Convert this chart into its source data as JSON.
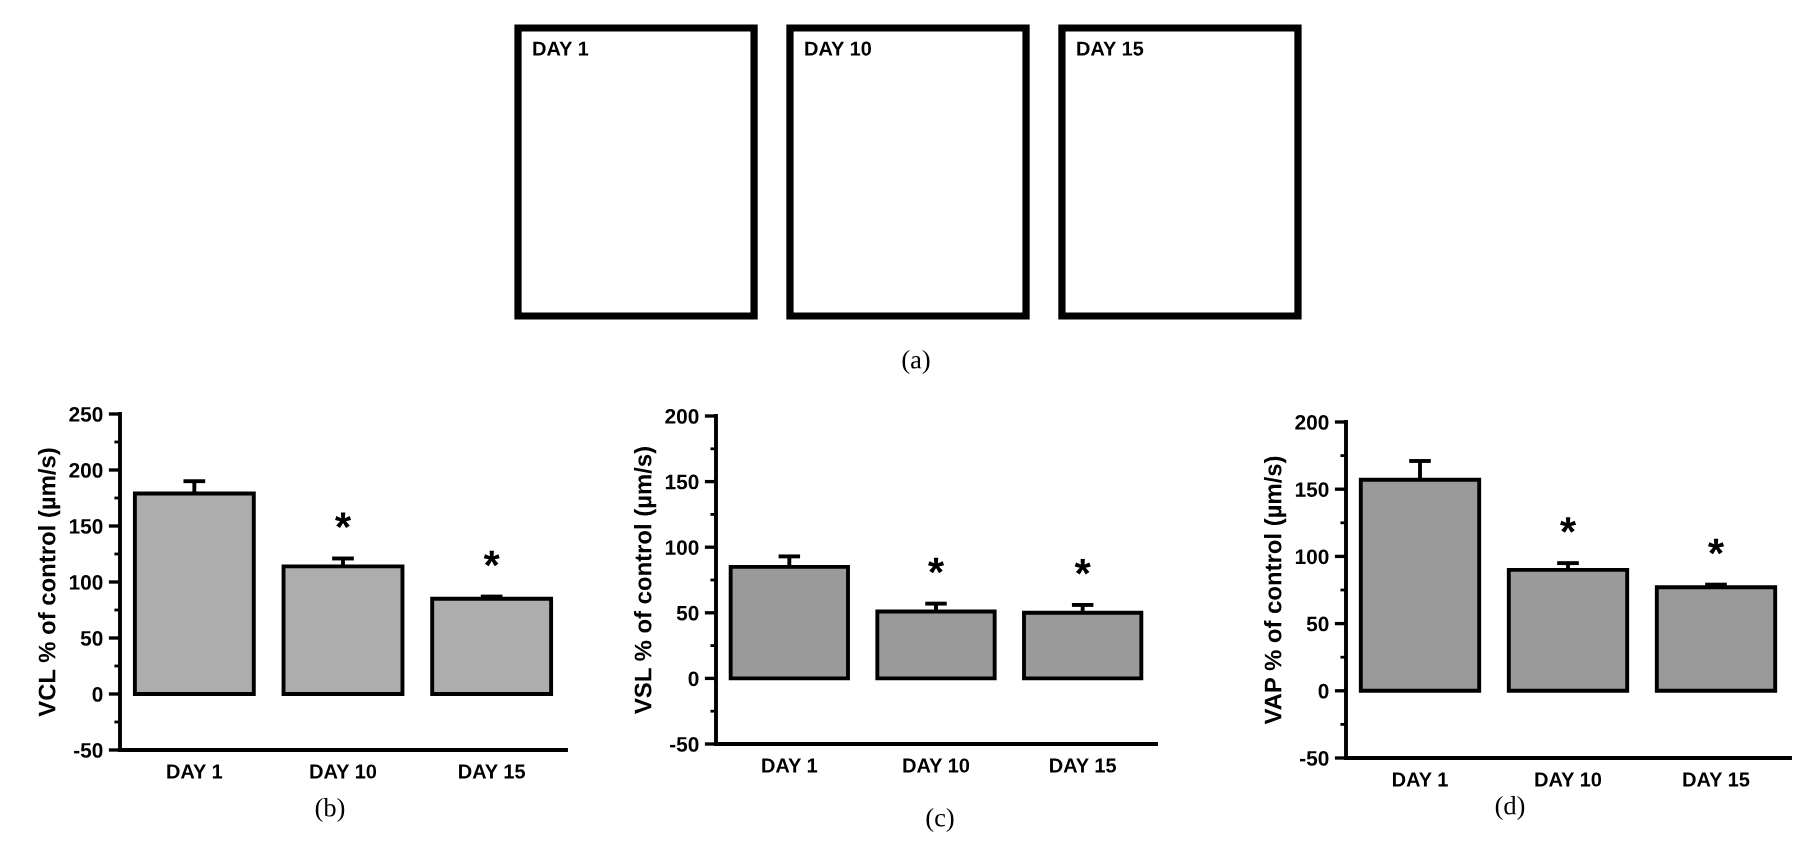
{
  "chart_data": [
    {
      "type": "other",
      "categories": [
        "DAY 1",
        "DAY 10",
        "DAY 15"
      ],
      "annotations": [
        "(a)"
      ]
    },
    {
      "type": "bar",
      "categories": [
        "DAY 1",
        "DAY 10",
        "DAY 15"
      ],
      "values": [
        179,
        114,
        85
      ],
      "color": "#adadad",
      "errors": [
        [
          179,
          190
        ],
        [
          114,
          121
        ],
        [
          85,
          87
        ]
      ],
      "ylabel": "VCL % of control (µm/s)",
      "ylim": [
        -50,
        250
      ],
      "yticks": [
        -50,
        {
          "value": -25,
          "label": null
        },
        0,
        {
          "value": 25,
          "label": null
        },
        50,
        {
          "value": 75,
          "label": null
        },
        100,
        {
          "value": 125,
          "label": null
        },
        150,
        {
          "value": 175,
          "label": null
        },
        200,
        {
          "value": 225,
          "label": null
        },
        250
      ],
      "annotations": [
        {
          "text": "*",
          "x": "DAY 10",
          "y": 114
        },
        {
          "text": "*",
          "x": "DAY 15",
          "y": 85
        },
        "(b)"
      ]
    },
    {
      "type": "bar",
      "categories": [
        "DAY 1",
        "DAY 10",
        "DAY 15"
      ],
      "values": [
        85,
        51,
        50
      ],
      "color": "#9a9a9a",
      "errors": [
        [
          85,
          93
        ],
        [
          51,
          57
        ],
        [
          50,
          56
        ]
      ],
      "ylabel": "VSL % of control (µm/s)",
      "ylim": [
        -50,
        200
      ],
      "yticks": [
        -50,
        {
          "value": -25,
          "label": null
        },
        0,
        {
          "value": 25,
          "label": null
        },
        50,
        {
          "value": 75,
          "label": null
        },
        100,
        {
          "value": 125,
          "label": null
        },
        150,
        {
          "value": 175,
          "label": null
        },
        200
      ],
      "annotations": [
        {
          "text": "*",
          "x": "DAY 10",
          "y": 51
        },
        {
          "text": "*",
          "x": "DAY 15",
          "y": 50
        },
        "(c)"
      ]
    },
    {
      "type": "bar",
      "categories": [
        "DAY 1",
        "DAY 10",
        "DAY 15"
      ],
      "values": [
        157,
        90,
        77
      ],
      "color": "#9a9a9a",
      "errors": [
        [
          157,
          171
        ],
        [
          90,
          95
        ],
        [
          77,
          79
        ]
      ],
      "ylabel": "VAP % of control (µm/s)",
      "ylim": [
        -50,
        200
      ],
      "yticks": [
        -50,
        {
          "value": -25,
          "label": null
        },
        0,
        {
          "value": 25,
          "label": null
        },
        50,
        {
          "value": 75,
          "label": null
        },
        100,
        {
          "value": 125,
          "label": null
        },
        150,
        {
          "value": 175,
          "label": null
        },
        200
      ],
      "annotations": [
        {
          "text": "*",
          "x": "DAY 10",
          "y": 90
        },
        {
          "text": "*",
          "x": "DAY 15",
          "y": 77
        },
        "(d)"
      ]
    }
  ]
}
